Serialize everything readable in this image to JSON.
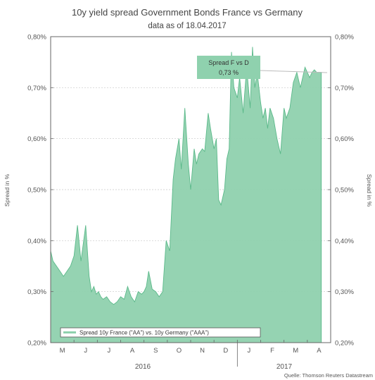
{
  "chart_data": {
    "type": "area",
    "title": "10y yield spread Government Bonds France vs Germany",
    "subtitle": "data as of 18.04.2017",
    "ylabel_left": "Spread in %",
    "ylabel_right": "Spread in %",
    "ylim": [
      0.2,
      0.8
    ],
    "yticks": [
      "0,20%",
      "0,30%",
      "0,40%",
      "0,50%",
      "0,60%",
      "0,70%",
      "0,80%"
    ],
    "months": [
      "M",
      "J",
      "J",
      "A",
      "S",
      "O",
      "N",
      "D",
      "J",
      "F",
      "M",
      "A"
    ],
    "years": [
      "2016",
      "2017"
    ],
    "legend": "Spread 10y France (\"AA\") vs. 10y Germany (\"AAA\")",
    "annotation": {
      "label": "Spread F vs D",
      "value": "0,73 %"
    },
    "source": "Quelle: Thomson Reuters Datastream",
    "series": [
      {
        "name": "Spread 10y France (\"AA\") vs. 10y Germany (\"AAA\")",
        "color": "#8fd1ae",
        "x": [
          0.0,
          0.1,
          0.25,
          0.4,
          0.55,
          0.7,
          0.85,
          1.0,
          1.15,
          1.3,
          1.5,
          1.65,
          1.75,
          1.85,
          1.95,
          2.05,
          2.15,
          2.25,
          2.4,
          2.55,
          2.7,
          2.85,
          3.0,
          3.15,
          3.3,
          3.45,
          3.6,
          3.75,
          3.9,
          4.0,
          4.1,
          4.2,
          4.35,
          4.5,
          4.65,
          4.8,
          4.95,
          5.1,
          5.25,
          5.35,
          5.5,
          5.6,
          5.75,
          5.9,
          6.0,
          6.15,
          6.25,
          6.35,
          6.5,
          6.6,
          6.75,
          6.85,
          7.0,
          7.1,
          7.2,
          7.3,
          7.45,
          7.55,
          7.65,
          7.75,
          7.85,
          8.0,
          8.1,
          8.25,
          8.4,
          8.55,
          8.65,
          8.75,
          8.85,
          9.0,
          9.1,
          9.2,
          9.3,
          9.4,
          9.55,
          9.7,
          9.85,
          10.0,
          10.1,
          10.25,
          10.4,
          10.55,
          10.7,
          10.8,
          10.9,
          11.0,
          11.1,
          11.2,
          11.3,
          11.4,
          11.5,
          11.6
        ],
        "y": [
          0.38,
          0.36,
          0.35,
          0.34,
          0.33,
          0.34,
          0.35,
          0.37,
          0.43,
          0.36,
          0.43,
          0.33,
          0.3,
          0.31,
          0.295,
          0.3,
          0.29,
          0.285,
          0.29,
          0.28,
          0.275,
          0.28,
          0.29,
          0.285,
          0.31,
          0.29,
          0.28,
          0.3,
          0.295,
          0.3,
          0.31,
          0.34,
          0.305,
          0.3,
          0.29,
          0.3,
          0.4,
          0.38,
          0.52,
          0.56,
          0.6,
          0.54,
          0.66,
          0.55,
          0.5,
          0.58,
          0.55,
          0.57,
          0.58,
          0.575,
          0.65,
          0.62,
          0.58,
          0.6,
          0.48,
          0.47,
          0.5,
          0.56,
          0.58,
          0.77,
          0.7,
          0.68,
          0.72,
          0.65,
          0.74,
          0.66,
          0.78,
          0.7,
          0.73,
          0.67,
          0.64,
          0.66,
          0.62,
          0.66,
          0.64,
          0.6,
          0.57,
          0.66,
          0.64,
          0.66,
          0.71,
          0.73,
          0.7,
          0.72,
          0.74,
          0.73,
          0.72,
          0.73,
          0.735,
          0.73,
          0.73,
          0.73
        ]
      }
    ]
  }
}
